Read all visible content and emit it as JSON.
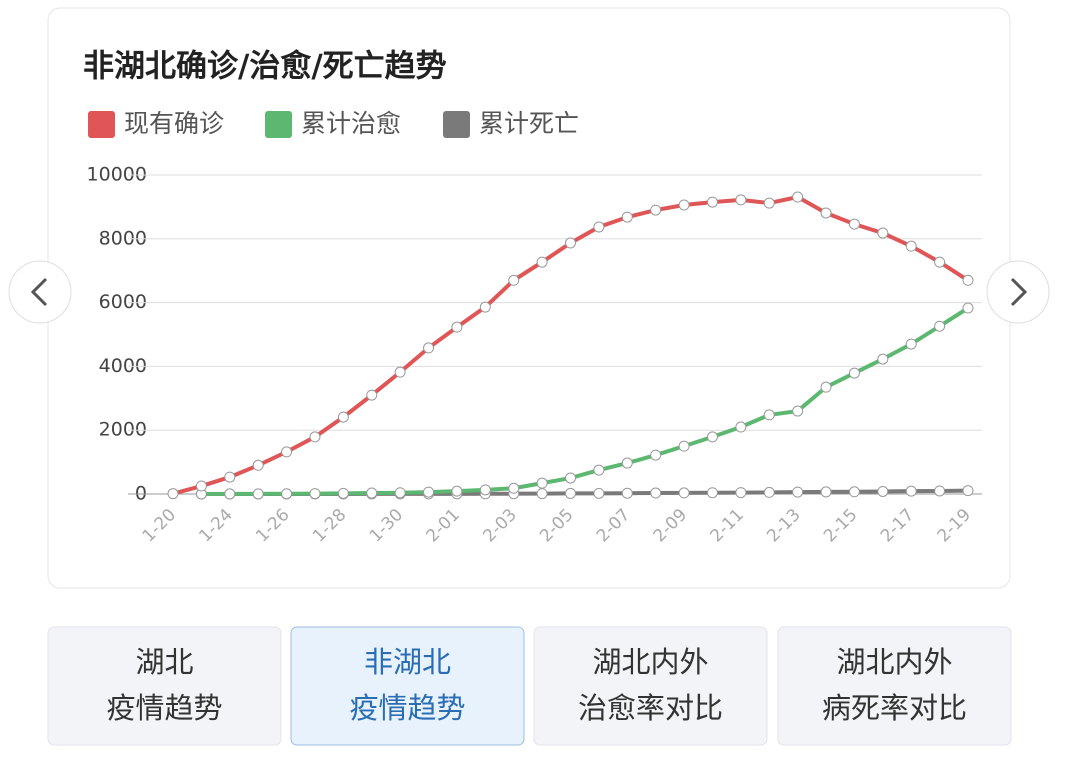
{
  "chart_data": {
    "type": "line",
    "title": "非湖北确诊/治愈/死亡趋势",
    "categories": [
      "1-20",
      null,
      "1-24",
      null,
      "1-26",
      null,
      "1-28",
      null,
      "1-30",
      null,
      "2-01",
      null,
      "2-03",
      null,
      "2-05",
      null,
      "2-07",
      null,
      "2-09",
      null,
      "2-11",
      null,
      "2-13",
      null,
      "2-15",
      null,
      "2-17",
      null,
      "2-19"
    ],
    "series": [
      {
        "name": "现有确诊",
        "color": "#e05555",
        "values": [
          10,
          250,
          530,
          900,
          1320,
          1790,
          2410,
          3100,
          3820,
          4580,
          5230,
          5860,
          6700,
          7270,
          7870,
          8370,
          8680,
          8900,
          9060,
          9150,
          9220,
          9120,
          9310,
          8810,
          8460,
          8180,
          7770,
          7270,
          6700
        ]
      },
      {
        "name": "累计治愈",
        "color": "#5cb870",
        "values": [
          null,
          0,
          2,
          5,
          8,
          12,
          20,
          30,
          40,
          60,
          90,
          130,
          180,
          340,
          500,
          750,
          970,
          1220,
          1500,
          1790,
          2100,
          2480,
          2600,
          3350,
          3790,
          4230,
          4700,
          5260,
          5830
        ]
      },
      {
        "name": "累计死亡",
        "color": "#7a7a7a",
        "values": [
          null,
          0,
          0,
          1,
          1,
          1,
          1,
          2,
          2,
          3,
          5,
          7,
          10,
          13,
          18,
          21,
          25,
          30,
          35,
          40,
          45,
          50,
          60,
          65,
          70,
          80,
          90,
          95,
          105
        ]
      }
    ],
    "ylim": [
      0,
      10000
    ],
    "yticks": [
      0,
      2000,
      4000,
      6000,
      8000,
      10000
    ],
    "grid": true
  },
  "buttons": [
    [
      "湖北",
      "疫情趋势"
    ],
    [
      "非湖北",
      "疫情趋势"
    ],
    [
      "湖北内外",
      "治愈率对比"
    ],
    [
      "湖北内外",
      "病死率对比"
    ]
  ],
  "selected": 1
}
